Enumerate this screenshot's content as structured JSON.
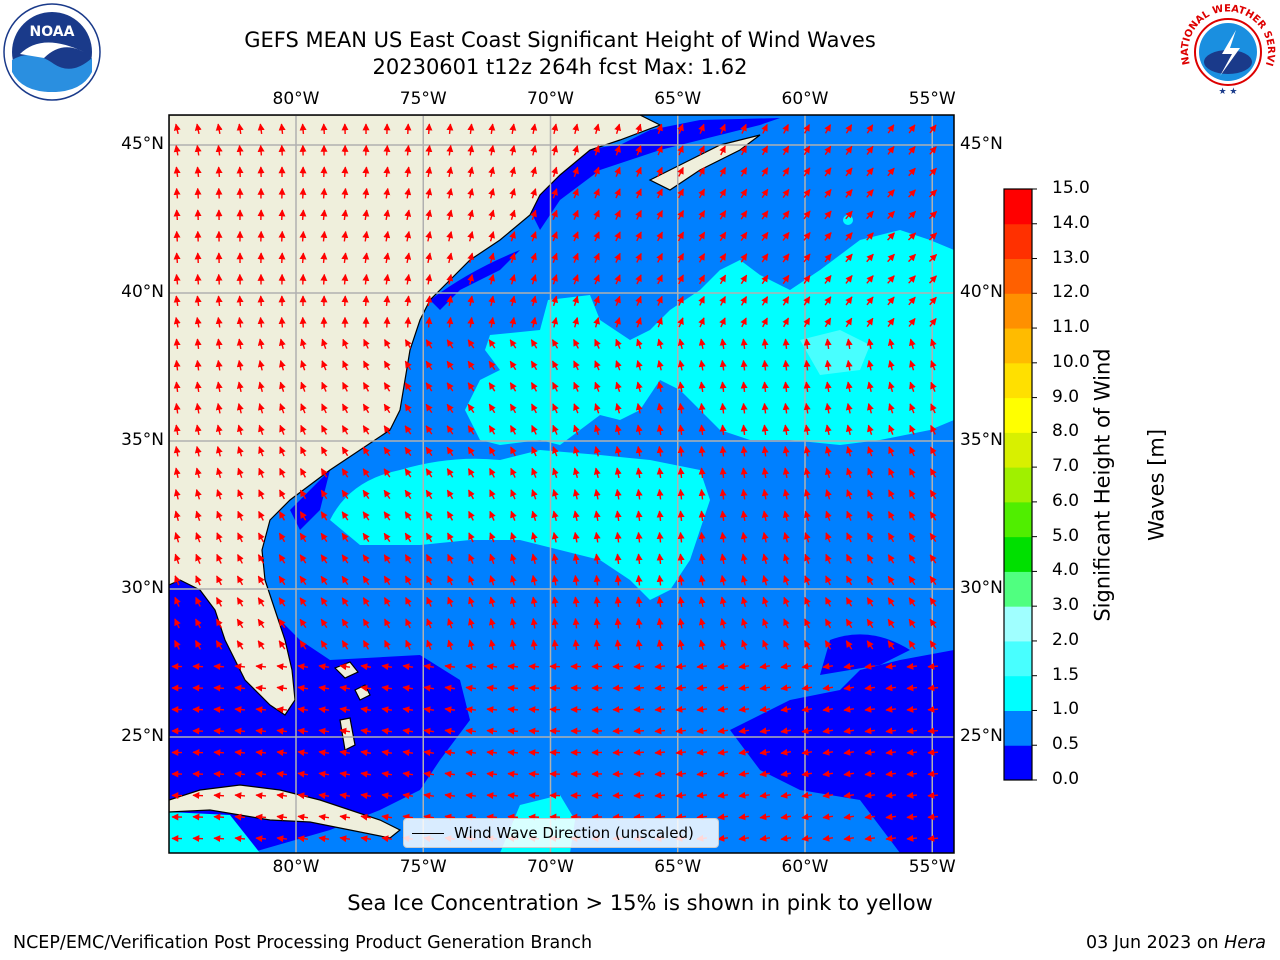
{
  "title": {
    "line1": "GEFS MEAN US East Coast Significant Height of Wind Waves",
    "line2": "20230601 t12z 264h fcst   Max: 1.62"
  },
  "axes": {
    "lon_labels": [
      "80°W",
      "75°W",
      "70°W",
      "65°W",
      "60°W",
      "55°W"
    ],
    "lat_labels": [
      "45°N",
      "40°N",
      "35°N",
      "30°N",
      "25°N"
    ],
    "lon_values": [
      -80,
      -75,
      -70,
      -65,
      -60,
      -55
    ],
    "lat_values": [
      45,
      40,
      35,
      30,
      25
    ],
    "lon_range": [
      -85,
      -54.3
    ],
    "lat_range": [
      20.3,
      45.8
    ]
  },
  "colorbar": {
    "title_line1": "Significant Height of Wind",
    "title_line2": "Waves [m]",
    "ticks": [
      "0.0",
      "0.5",
      "1.0",
      "1.5",
      "2.0",
      "3.0",
      "4.0",
      "5.0",
      "6.0",
      "7.0",
      "8.0",
      "9.0",
      "10.0",
      "11.0",
      "12.0",
      "13.0",
      "14.0",
      "15.0"
    ],
    "colors": [
      "#0000ff",
      "#0080ff",
      "#00ffff",
      "#48ffff",
      "#a0ffff",
      "#50ff80",
      "#00e000",
      "#50ee00",
      "#a0f000",
      "#d8f000",
      "#ffff00",
      "#ffe000",
      "#ffbb00",
      "#ff9000",
      "#ff6000",
      "#ff3000",
      "#ff0000"
    ]
  },
  "legend": {
    "label": "Wind Wave Direction (unscaled)"
  },
  "colors": {
    "land": "#efefdc",
    "ocean_low": "#0000ff",
    "ocean_mid": "#0080ff",
    "ocean_high": "#00ffff",
    "ocean_top": "#48ffff",
    "arrow": "#ff0000",
    "grid": "#b0b0b0"
  },
  "ice_note": "Sea Ice Concentration > 15% is shown in pink to yellow",
  "footer": {
    "left": "NCEP/EMC/Verification Post Processing Product Generation Branch",
    "right_date": "03 Jun 2023 on ",
    "right_host": "Hera"
  },
  "logos": {
    "left": "noaa-logo",
    "right": "nws-logo",
    "noaa_text": "NOAA",
    "nws_text": "NATIONAL WEATHER SERVICE"
  }
}
